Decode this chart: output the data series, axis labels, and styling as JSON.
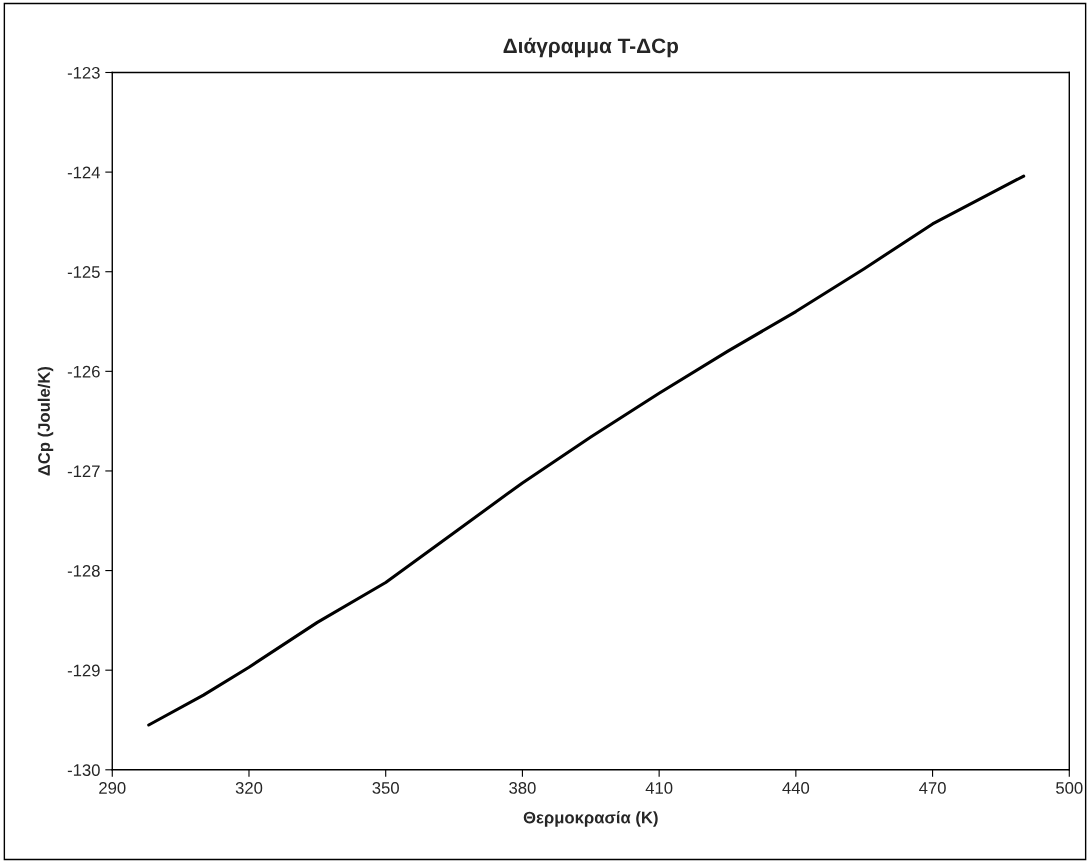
{
  "chart_data": {
    "type": "line",
    "title": "Διάγραμμα T-ΔCp",
    "xlabel": "Θερμοκρασία (K)",
    "ylabel": "ΔCp (Joule/K)",
    "x": [
      298,
      310,
      320,
      335,
      350,
      365,
      380,
      395,
      410,
      425,
      440,
      455,
      470,
      490
    ],
    "series": [
      {
        "color": "#000000",
        "values": [
          -129.55,
          -129.25,
          -128.97,
          -128.52,
          -128.12,
          -127.62,
          -127.12,
          -126.66,
          -126.22,
          -125.8,
          -125.4,
          -124.97,
          -124.52,
          -124.04
        ]
      }
    ],
    "xlim": [
      290,
      500
    ],
    "xticks": [
      290,
      320,
      350,
      380,
      410,
      440,
      470,
      500
    ],
    "ylim": [
      -130,
      -123
    ],
    "yticks": [
      -130,
      -129,
      -128,
      -127,
      -126,
      -125,
      -124,
      -123
    ],
    "grid": false,
    "marker": "none",
    "line_style": "solid"
  }
}
